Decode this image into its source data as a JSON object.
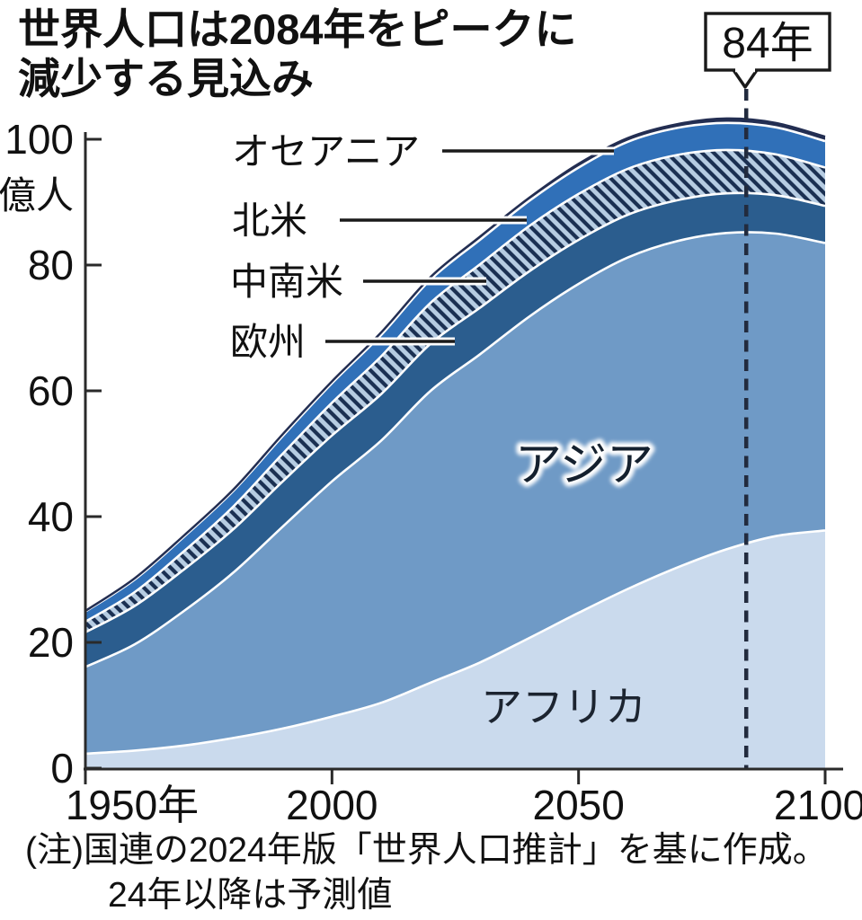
{
  "title": {
    "line1": "世界人口は2084年をピークに",
    "line2": "減少する見込み"
  },
  "callout": {
    "label": "84年",
    "year": 2084
  },
  "y_axis": {
    "unit": "億人",
    "ticks": [
      0,
      20,
      40,
      60,
      80,
      100
    ]
  },
  "x_axis": {
    "ticks": [
      {
        "year": 1950,
        "label": "1950年"
      },
      {
        "year": 2000,
        "label": "2000"
      },
      {
        "year": 2050,
        "label": "2050"
      },
      {
        "year": 2100,
        "label": "2100"
      }
    ]
  },
  "legend": [
    {
      "label": "オセアニア",
      "series": "oceania"
    },
    {
      "label": "北米",
      "series": "northam"
    },
    {
      "label": "中南米",
      "series": "latam"
    },
    {
      "label": "欧州",
      "series": "europe"
    }
  ],
  "area_labels": {
    "asia": "アジア",
    "africa": "アフリカ"
  },
  "note": {
    "line1": "(注)国連の2024年版「世界人口推計」を基に作成。",
    "line2": "24年以降は予測値"
  },
  "colors": {
    "africa": "#cadaed",
    "asia": "#6f9ac6",
    "europe": "#2b5d8e",
    "latam_bg": "#b6cce2",
    "latam_stripe": "#1b3052",
    "northam": "#3070b8",
    "oceania": "#232e52",
    "separator": "#ffffff",
    "axis": "#2a2a2a",
    "dashed_line": "#222b3e",
    "text": "#111111"
  },
  "chart_data": {
    "type": "area",
    "stacked": true,
    "title": "世界人口は2084年をピークに減少する見込み",
    "x_unit": "年",
    "y_unit": "億人",
    "ylim": [
      0,
      105
    ],
    "xlim": [
      1950,
      2100
    ],
    "grid": false,
    "legend_position": "inline-labels",
    "peak_year": 2084,
    "peak_total": 103.4,
    "x": [
      1950,
      1960,
      1970,
      1980,
      1990,
      2000,
      2010,
      2020,
      2030,
      2040,
      2050,
      2060,
      2070,
      2080,
      2090,
      2100
    ],
    "series": [
      {
        "key": "africa",
        "name": "アフリカ",
        "values": [
          2.3,
          2.8,
          3.6,
          4.8,
          6.3,
          8.2,
          10.4,
          13.6,
          16.8,
          20.7,
          24.7,
          28.5,
          31.9,
          34.8,
          36.9,
          37.8
        ]
      },
      {
        "key": "asia",
        "name": "アジア",
        "values": [
          13.8,
          16.9,
          21.4,
          26.3,
          32.1,
          37.4,
          41.7,
          46.4,
          49.0,
          51.1,
          52.3,
          52.7,
          51.9,
          50.3,
          48.1,
          45.7
        ]
      },
      {
        "key": "europe",
        "name": "欧州",
        "values": [
          5.5,
          6.1,
          6.6,
          6.9,
          7.2,
          7.3,
          7.4,
          7.5,
          7.4,
          7.2,
          7.0,
          6.8,
          6.5,
          6.3,
          6.1,
          5.9
        ]
      },
      {
        "key": "latam",
        "name": "中南米",
        "values": [
          1.7,
          2.2,
          2.9,
          3.6,
          4.4,
          5.2,
          6.0,
          6.5,
          6.9,
          7.2,
          7.3,
          7.3,
          7.2,
          6.9,
          6.5,
          6.1
        ]
      },
      {
        "key": "northam",
        "name": "北米",
        "values": [
          1.6,
          2.0,
          2.3,
          2.5,
          2.8,
          3.1,
          3.4,
          3.7,
          3.9,
          4.0,
          4.2,
          4.3,
          4.3,
          4.3,
          4.3,
          4.2
        ]
      },
      {
        "key": "oceania",
        "name": "オセアニア",
        "values": [
          0.1,
          0.2,
          0.2,
          0.2,
          0.3,
          0.3,
          0.4,
          0.4,
          0.5,
          0.5,
          0.6,
          0.6,
          0.6,
          0.7,
          0.7,
          0.7
        ]
      }
    ],
    "annotation": {
      "text": "84年",
      "x": 2084
    },
    "source": "(注)国連の2024年版「世界人口推計」を基に作成。24年以降は予測値"
  }
}
